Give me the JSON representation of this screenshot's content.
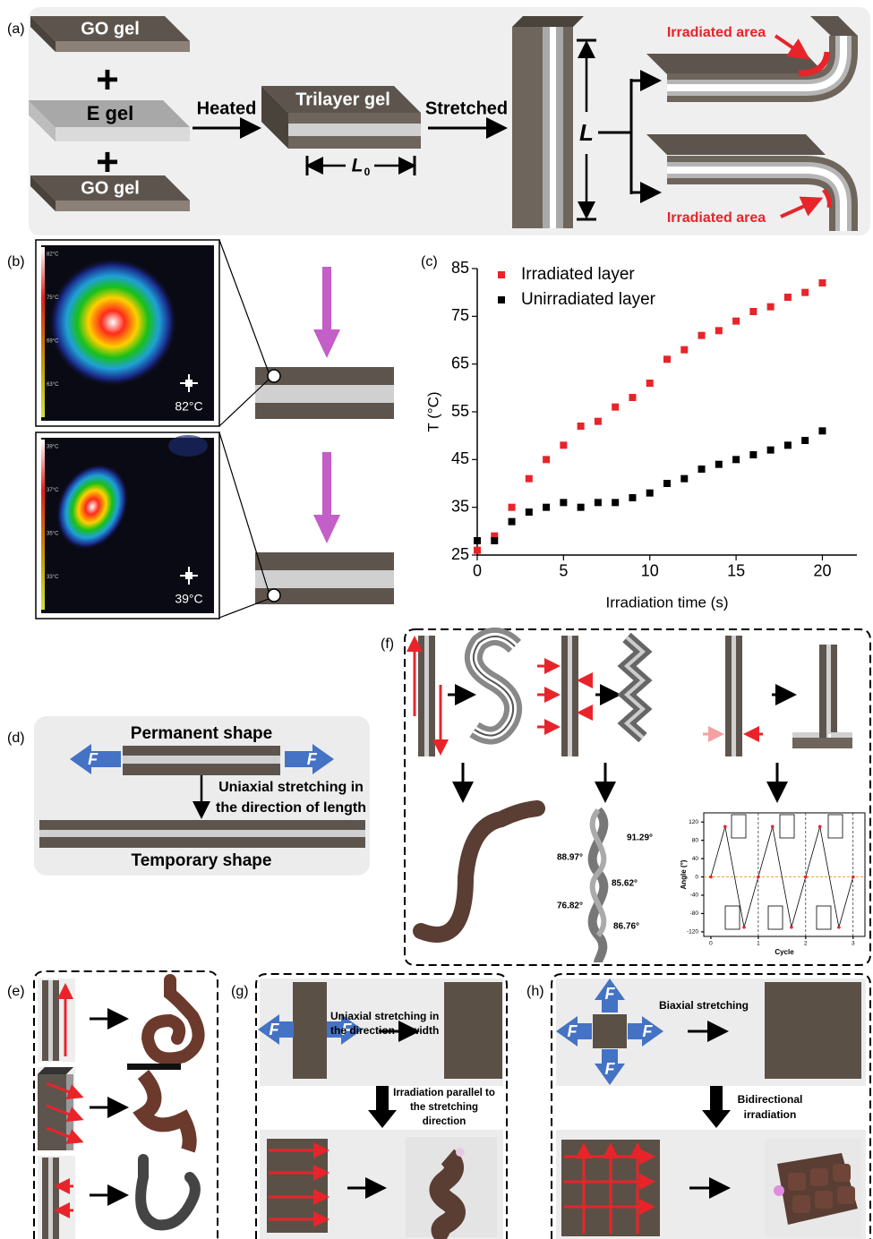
{
  "panel_labels": [
    "(a)",
    "(b)",
    "(c)",
    "(d)",
    "(e)",
    "(f)",
    "(g)",
    "(h)"
  ],
  "panel_a": {
    "top_gel": "GO gel",
    "plus_1": "+",
    "middle_gel": "E gel",
    "plus_2": "+",
    "bottom_gel": "GO gel",
    "step_1": "Heated",
    "trilayer": "Trilayer gel",
    "initial_length": "L",
    "initial_length_subscript": "0",
    "step_2": "Stretched",
    "stretched_length": "L",
    "irradiated_top": "Irradiated area",
    "irradiated_bottom": "Irradiated area"
  },
  "panel_b": {
    "image_1": {
      "scale": [
        "82°C",
        "75°C",
        "69°C",
        "63°C"
      ],
      "reading": "82°C"
    },
    "image_2": {
      "scale": [
        "39°C",
        "37°C",
        "35°C",
        "33°C"
      ],
      "reading": "39°C"
    }
  },
  "panel_d": {
    "permanent": "Permanent shape",
    "force_left": "F",
    "force_right": "F",
    "process": [
      "Uniaxial stretching in",
      "the direction of length"
    ],
    "temporary": "Temporary shape"
  },
  "panel_f": {
    "angles": [
      "91.29°",
      "88.97°",
      "85.62°",
      "76.82°",
      "86.76°"
    ]
  },
  "panel_g": {
    "force_left": "F",
    "force_right": "F",
    "process": [
      "Uniaxial stretching in",
      "the direction of width"
    ],
    "irradiation": [
      "Irradiation parallel to",
      "the stretching",
      "direction"
    ]
  },
  "panel_h": {
    "forces": [
      "F",
      "F",
      "F",
      "F"
    ],
    "process": "Biaxial stretching",
    "irradiation": [
      "Bidirectional",
      "irradiation"
    ]
  },
  "chart_data": [
    {
      "type": "scatter",
      "x_label": "Irradiation time (s)",
      "y_label": "T (°C)",
      "x": [
        0,
        1,
        2,
        3,
        4,
        5,
        6,
        7,
        8,
        9,
        10,
        11,
        12,
        13,
        14,
        15,
        16,
        17,
        18,
        19,
        20
      ],
      "series": [
        {
          "name": "Irradiated layer",
          "color": "#e8242a",
          "values": [
            26,
            29,
            35,
            41,
            45,
            48,
            52,
            53,
            56,
            58,
            61,
            66,
            68,
            71,
            72,
            74,
            76,
            77,
            79,
            80,
            82
          ]
        },
        {
          "name": "Unirradiated layer",
          "color": "#000000",
          "values": [
            28,
            28,
            32,
            34,
            35,
            36,
            35,
            36,
            36,
            37,
            38,
            40,
            41,
            43,
            44,
            45,
            46,
            47,
            48,
            49,
            51
          ]
        }
      ],
      "xlim": [
        0,
        22
      ],
      "ylim": [
        25,
        85
      ],
      "xticks": [
        0,
        5,
        10,
        15,
        20
      ],
      "yticks": [
        25,
        35,
        45,
        55,
        65,
        75,
        85
      ],
      "legend": "upper left"
    },
    {
      "type": "line",
      "x_label": "Cycle",
      "y_label": "Angle (°)",
      "x": [
        0,
        0.3,
        0.7,
        1,
        1.3,
        1.7,
        2,
        2.3,
        2.7,
        3
      ],
      "series": [
        {
          "color": "#000000",
          "marker_color": "#e8242a",
          "values": [
            0,
            110,
            -110,
            0,
            110,
            -110,
            0,
            110,
            -110,
            0
          ]
        }
      ],
      "xlim": [
        -0.15,
        3.25
      ],
      "ylim": [
        -130,
        140
      ],
      "xticks": [
        0,
        1,
        2,
        3
      ],
      "yticks": [
        -120,
        -80,
        -40,
        0,
        40,
        80,
        120
      ]
    }
  ]
}
